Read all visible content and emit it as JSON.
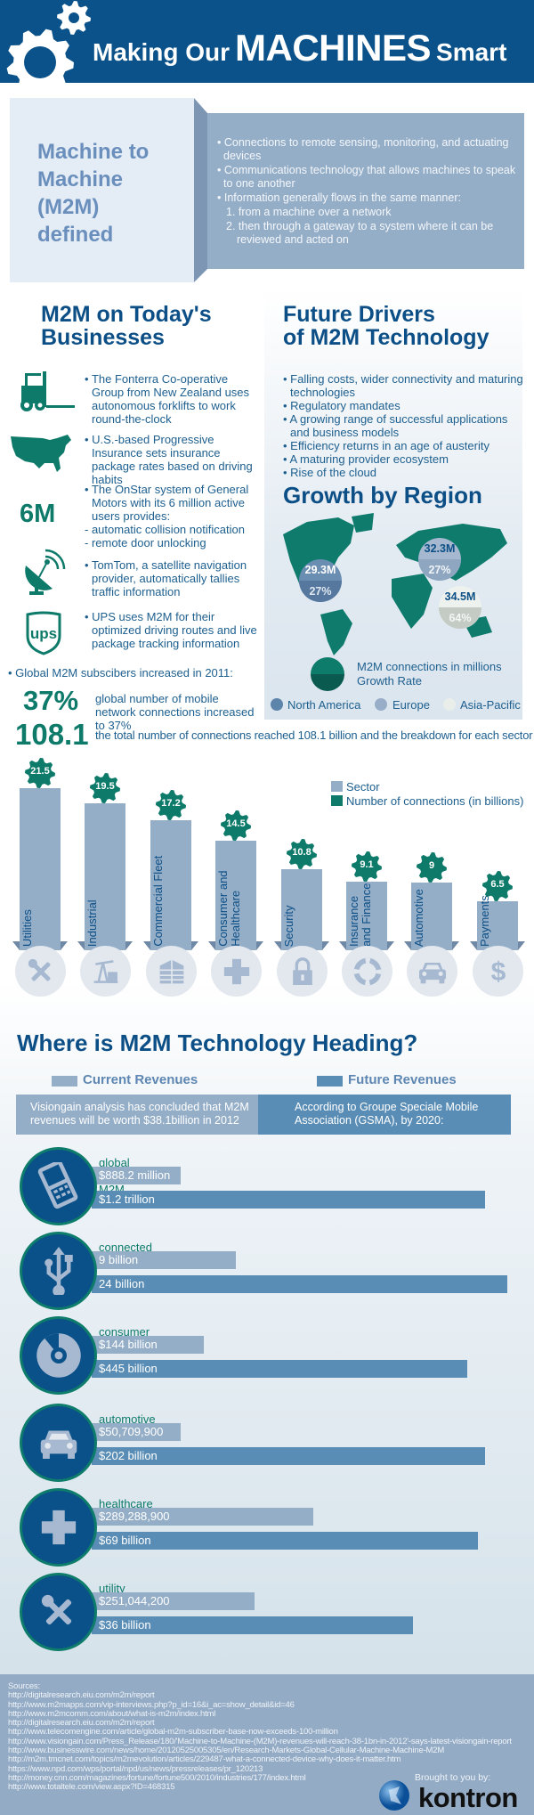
{
  "header": {
    "title_pre": "Making Our",
    "title_main": "MACHINES",
    "title_post": "Smart"
  },
  "definition": {
    "title_lines": [
      "Machine to",
      "Machine",
      "(M2M)",
      "defined"
    ],
    "bullets": [
      "Connections to remote sensing, monitoring, and actuating devices",
      "Communications technology that allows machines to speak to one another",
      "Information generally flows in the same manner:"
    ],
    "steps": [
      "1. from a machine over a network",
      "2. then through a gateway to a system where it can be reviewed and acted on"
    ]
  },
  "businesses": {
    "heading_lines": [
      "M2M on Today's",
      "Businesses"
    ],
    "items": [
      {
        "icon": "forklift-icon",
        "text": "The Fonterra Co-operative Group from New Zealand uses autonomous forklifts to work round-the-clock"
      },
      {
        "icon": "us-map-icon",
        "text": "U.S.-based Progressive Insurance sets insurance package rates based on driving habits"
      },
      {
        "icon": "6M",
        "text": "The OnStar system of General Motors with its 6 million active users provides:",
        "subitems": [
          "- automatic collision notification",
          "- remote door unlocking"
        ]
      },
      {
        "icon": "satellite-dish-icon",
        "text": "TomTom, a satellite navigation provider, automatically tallies traffic information"
      },
      {
        "icon": "ups-logo-icon",
        "text": "UPS uses M2M for their optimized driving routes and live package tracking information"
      }
    ],
    "subscribers_intro": "Global M2M subscibers increased in 2011:",
    "stat1": {
      "value": "37%",
      "text": "global number of mobile network connections increased to 37%"
    },
    "stat2": {
      "value": "108.1",
      "text": "the total number of connections reached 108.1 billion and the breakdown for each sector"
    }
  },
  "drivers": {
    "heading_lines": [
      "Future Drivers",
      "of M2M Technology"
    ],
    "bullets": [
      "Falling costs, wider connectivity and maturing technologies",
      "Regulatory mandates",
      "A growing range of successful applications and business models",
      "Efficiency returns in an age of austerity",
      "A maturing provider ecosystem",
      "Rise of the cloud"
    ]
  },
  "growth": {
    "heading": "Growth by Region",
    "regions": [
      {
        "name": "North America",
        "connections": "29.3M",
        "rate": "27%",
        "color": "#5d84ab"
      },
      {
        "name": "Europe",
        "connections": "32.3M",
        "rate": "27%",
        "color": "#98adc7"
      },
      {
        "name": "Asia-Pacific",
        "connections": "34.5M",
        "rate": "64%",
        "color": "#e9eeea"
      }
    ],
    "legend_connections": "M2M connections in millions",
    "legend_rate": "Growth Rate"
  },
  "chart_data": {
    "type": "bar",
    "categories": [
      "Utilities",
      "Industrial",
      "Commercial Fleet",
      "Consumer and\nHealthcare",
      "Security",
      "Insurance\nand Finance",
      "Automotive",
      "Payments"
    ],
    "icons": [
      "tools-icon",
      "oil-pump-icon",
      "building-icon",
      "medical-cross-icon",
      "lock-icon",
      "lifebuoy-icon",
      "car-icon",
      "dollar-icon"
    ],
    "values": [
      21.5,
      19.5,
      17.2,
      14.5,
      10.8,
      9.1,
      9,
      6.5
    ],
    "value_labels": [
      "21.5",
      "19.5",
      "17.2",
      "14.5",
      "10.8",
      "9.1",
      "9",
      "6.5"
    ],
    "legend": [
      "Sector",
      "Number of connections (in billions)"
    ],
    "colors": {
      "sector": "#95aec8",
      "connections": "#0d7a6a"
    }
  },
  "heading": {
    "title": "Where is M2M Technology Heading?",
    "current_label": "Current Revenues",
    "future_label": "Future Revenues",
    "current_text": "Visiongain analysis has concluded that M2M revenues will be worth $38.1billion in 2012",
    "future_text": "According to Groupe Speciale Mobile Association (GSMA), by 2020:",
    "colors": {
      "current": "#95aec8",
      "future": "#5a8db5"
    }
  },
  "revenues": [
    {
      "label": "global cellular M2M",
      "icon": "mobile-phone-icon",
      "current": "$888.2 million",
      "future": "$1.2 trillion"
    },
    {
      "label": "connected devices",
      "icon": "usb-icon",
      "current": "9 billion",
      "future": "24 billion"
    },
    {
      "label": "consumer electronic",
      "icon": "disc-icon",
      "current": "$144 billion",
      "future": "$445 billion"
    },
    {
      "label": "automotive sector",
      "icon": "car-icon",
      "current": "$50,709,900",
      "future": "$202 billion"
    },
    {
      "label": "healthcare",
      "icon": "medical-cross-icon",
      "current": "$289,288,900",
      "future": "$69 billion"
    },
    {
      "label": "utility sector",
      "icon": "tools-icon",
      "current": "$251,044,200",
      "future": "$36 billion"
    }
  ],
  "footer": {
    "sources_label": "Sources:",
    "sources": [
      "http://digitalresearch.eiu.com/m2m/report",
      "http://www.m2mapps.com/vip-interviews.php?p_id=16&i_ac=show_detail&id=46",
      "http://www.m2mcomm.com/about/what-is-m2m/index.html",
      "http://digitalresearch.eiu.com/m2m/report",
      "http://www.telecomengine.com/article/global-m2m-subscriber-base-now-exceeds-100-million",
      "http://www.visiongain.com/Press_Release/180/'Machine-to-Machine-(M2M)-revenues-will-reach-38-1bn-in-2012'-says-latest-visiongain-report",
      "http://www.businesswire.com/news/home/20120525005305/en/Research-Markets-Global-Cellular-Machine-Machine-M2M",
      "http://m2m.tmcnet.com/topics/m2mevolution/articles/229487-what-a-connected-device-why-does-it-matter.htm",
      "https://www.npd.com/wps/portal/npd/us/news/pressreleases/pr_120213",
      "http://money.cnn.com/magazines/fortune/fortune500/2010/industries/177/index.html",
      "http://www.totaltele.com/view.aspx?ID=468315"
    ],
    "brought_by": "Brought to you by:",
    "brand": "kontron"
  }
}
